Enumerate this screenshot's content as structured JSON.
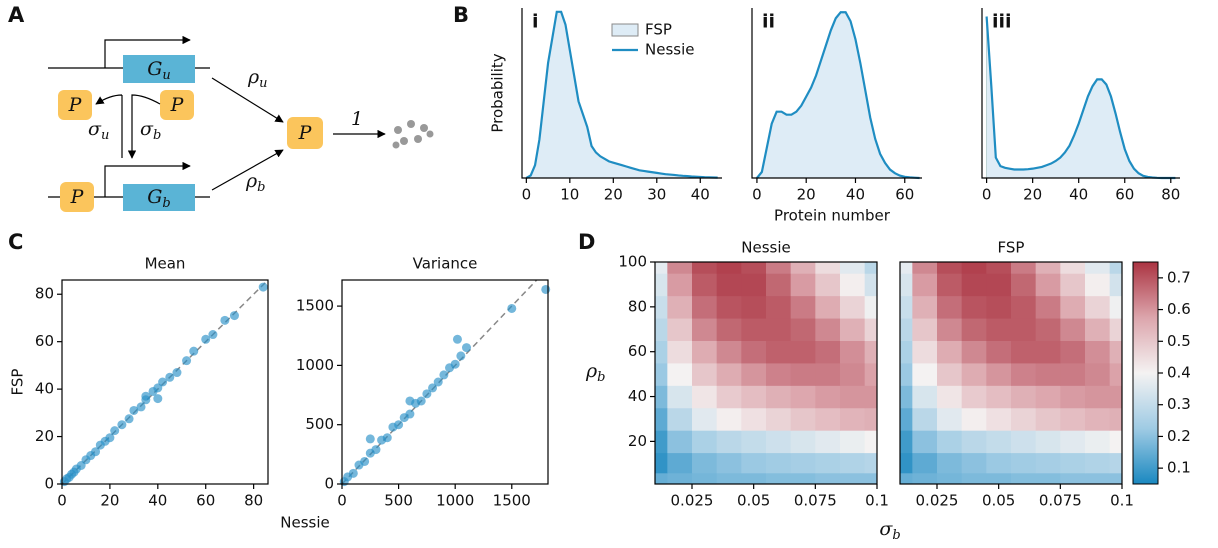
{
  "panel_labels": [
    "A",
    "B",
    "C",
    "D"
  ],
  "diagram": {
    "gene_u": {
      "main": "G",
      "sub": "u"
    },
    "gene_b": {
      "main": "G",
      "sub": "b"
    },
    "protein": "P",
    "rho_u": {
      "main": "ρ",
      "sub": "u"
    },
    "rho_b": {
      "main": "ρ",
      "sub": "b"
    },
    "sigma_u": {
      "main": "σ",
      "sub": "u"
    },
    "sigma_b": {
      "main": "σ",
      "sub": "b"
    },
    "rate": "1"
  },
  "panel_b": {
    "x_label": "Protein number",
    "y_label": "Probability"
  },
  "panel_c": {
    "x_label": "Nessie",
    "y_label": "FSP"
  },
  "panel_d": {
    "x_label": {
      "main": "σ",
      "sub": "b"
    },
    "y_label": {
      "main": "ρ",
      "sub": "b"
    },
    "colorbar": {
      "lim": [
        0.05,
        0.75
      ],
      "ticks": [
        0.1,
        0.2,
        0.3,
        0.4,
        0.5,
        0.6,
        0.7
      ],
      "colors": [
        "#1a88c0",
        "#9fcbe4",
        "#f4f2f2",
        "#dca5ac",
        "#ab3442"
      ]
    }
  },
  "chart_data": [
    {
      "type": "line",
      "title": "i",
      "legend": "upper right",
      "x": [
        0,
        1,
        2,
        3,
        4,
        5,
        6,
        7,
        8,
        9,
        10,
        11,
        12,
        13,
        14,
        15,
        16,
        17,
        18,
        19,
        20,
        21,
        22,
        23,
        24,
        25,
        26,
        27,
        28,
        29,
        30,
        31,
        32,
        33,
        34,
        35,
        36,
        37,
        38,
        39,
        40,
        41,
        42,
        43,
        44
      ],
      "series": [
        {
          "name": "FSP",
          "color": "#deecf6",
          "values": [
            0,
            0.002,
            0.01,
            0.03,
            0.06,
            0.09,
            0.11,
            0.13,
            0.13,
            0.12,
            0.1,
            0.08,
            0.06,
            0.05,
            0.04,
            0.025,
            0.02,
            0.017,
            0.015,
            0.013,
            0.012,
            0.011,
            0.01,
            0.009,
            0.008,
            0.007,
            0.006,
            0.0055,
            0.005,
            0.0045,
            0.004,
            0.0035,
            0.003,
            0.0027,
            0.0024,
            0.002,
            0.0017,
            0.0015,
            0.0012,
            0.001,
            0.0008,
            0.0006,
            0.0005,
            0.0004,
            0.0003
          ]
        },
        {
          "name": "Nessie",
          "color": "#1f8dc2",
          "values": [
            0,
            0.002,
            0.01,
            0.03,
            0.06,
            0.09,
            0.11,
            0.13,
            0.13,
            0.12,
            0.1,
            0.08,
            0.06,
            0.05,
            0.04,
            0.025,
            0.02,
            0.017,
            0.015,
            0.013,
            0.012,
            0.011,
            0.01,
            0.009,
            0.008,
            0.007,
            0.006,
            0.0055,
            0.005,
            0.0045,
            0.004,
            0.0035,
            0.003,
            0.0027,
            0.0024,
            0.002,
            0.0017,
            0.0015,
            0.0012,
            0.001,
            0.0008,
            0.0006,
            0.0005,
            0.0004,
            0.0003
          ]
        }
      ],
      "xlim": [
        -1,
        45
      ],
      "xticks": [
        0,
        10,
        20,
        30,
        40
      ],
      "ylim": [
        0,
        0.133
      ]
    },
    {
      "type": "line",
      "title": "ii",
      "x": [
        0,
        2,
        4,
        6,
        8,
        10,
        12,
        14,
        16,
        18,
        20,
        22,
        24,
        26,
        28,
        30,
        32,
        34,
        36,
        38,
        40,
        42,
        44,
        46,
        48,
        50,
        52,
        54,
        56,
        58,
        60,
        62,
        64,
        66
      ],
      "series": [
        {
          "name": "FSP",
          "color": "#deecf6",
          "values": [
            0,
            0.001,
            0.005,
            0.009,
            0.011,
            0.011,
            0.0105,
            0.0105,
            0.011,
            0.012,
            0.0135,
            0.015,
            0.017,
            0.0195,
            0.022,
            0.0245,
            0.0265,
            0.0275,
            0.0275,
            0.026,
            0.023,
            0.019,
            0.0145,
            0.01,
            0.0065,
            0.004,
            0.0025,
            0.0014,
            0.0008,
            0.0004,
            0.0002,
            0.0001,
            5e-05,
            0
          ]
        },
        {
          "name": "Nessie",
          "color": "#1f8dc2",
          "values": [
            0,
            0.001,
            0.005,
            0.009,
            0.011,
            0.011,
            0.0105,
            0.0105,
            0.011,
            0.012,
            0.0135,
            0.015,
            0.017,
            0.0195,
            0.022,
            0.0245,
            0.0265,
            0.0275,
            0.0275,
            0.026,
            0.023,
            0.019,
            0.0145,
            0.01,
            0.0065,
            0.004,
            0.0025,
            0.0014,
            0.0008,
            0.0004,
            0.0002,
            0.0001,
            5e-05,
            0
          ]
        }
      ],
      "xlim": [
        -2,
        67
      ],
      "xticks": [
        0,
        20,
        40,
        60
      ],
      "ylim": [
        0,
        0.0282
      ]
    },
    {
      "type": "line",
      "title": "iii",
      "x": [
        0,
        2,
        4,
        6,
        8,
        10,
        12,
        14,
        16,
        18,
        20,
        22,
        24,
        26,
        28,
        30,
        32,
        34,
        36,
        38,
        40,
        42,
        44,
        46,
        48,
        50,
        52,
        54,
        56,
        58,
        60,
        62,
        64,
        66,
        68,
        70,
        72,
        74,
        76,
        78,
        80,
        82
      ],
      "series": [
        {
          "name": "FSP",
          "color": "#deecf6",
          "values": [
            0.095,
            0.055,
            0.012,
            0.007,
            0.006,
            0.0055,
            0.005,
            0.005,
            0.005,
            0.0052,
            0.0055,
            0.006,
            0.0065,
            0.0075,
            0.0085,
            0.01,
            0.012,
            0.015,
            0.019,
            0.025,
            0.032,
            0.04,
            0.048,
            0.054,
            0.058,
            0.058,
            0.055,
            0.048,
            0.038,
            0.027,
            0.017,
            0.01,
            0.0055,
            0.0028,
            0.0013,
            0.0006,
            0.0003,
            0.0001,
            0,
            0,
            0,
            0
          ]
        },
        {
          "name": "Nessie",
          "color": "#1f8dc2",
          "values": [
            0.095,
            0.055,
            0.012,
            0.007,
            0.006,
            0.0055,
            0.005,
            0.005,
            0.005,
            0.0052,
            0.0055,
            0.006,
            0.0065,
            0.0075,
            0.0085,
            0.01,
            0.012,
            0.015,
            0.019,
            0.025,
            0.032,
            0.04,
            0.048,
            0.054,
            0.058,
            0.058,
            0.055,
            0.048,
            0.038,
            0.027,
            0.017,
            0.01,
            0.0055,
            0.0028,
            0.0013,
            0.0006,
            0.0003,
            0.0001,
            0,
            0,
            0,
            0
          ]
        }
      ],
      "xlim": [
        -2,
        84
      ],
      "xticks": [
        0,
        20,
        40,
        60,
        80
      ],
      "ylim": [
        0,
        0.1
      ]
    },
    {
      "type": "scatter",
      "title": "Mean",
      "color": "#2a90c8",
      "x": [
        1,
        2,
        3,
        4,
        5,
        6,
        8,
        10,
        12,
        14,
        16,
        18,
        20,
        22,
        25,
        28,
        30,
        33,
        35,
        38,
        40,
        42,
        45,
        48,
        52,
        55,
        60,
        63,
        68,
        72,
        84,
        40,
        35
      ],
      "y": [
        1,
        2.2,
        2.8,
        4.1,
        5,
        6.3,
        7.8,
        10.2,
        12,
        13.6,
        16.4,
        18,
        19.5,
        22.5,
        25,
        27.5,
        31,
        32.5,
        35.5,
        39,
        40.5,
        43,
        45,
        47,
        52,
        56,
        61,
        63,
        69,
        71,
        83,
        36,
        37
      ],
      "xlim": [
        0,
        86
      ],
      "xticks": [
        0,
        20,
        40,
        60,
        80
      ],
      "ylim": [
        0,
        86
      ],
      "yticks": [
        0,
        20,
        40,
        60,
        80
      ]
    },
    {
      "type": "scatter",
      "title": "Variance",
      "color": "#2a90c8",
      "x": [
        20,
        50,
        100,
        150,
        200,
        250,
        300,
        350,
        400,
        450,
        500,
        550,
        600,
        650,
        700,
        750,
        800,
        850,
        900,
        950,
        1000,
        1050,
        1100,
        1500,
        1800,
        1020,
        250,
        600
      ],
      "y": [
        20,
        60,
        90,
        160,
        190,
        260,
        290,
        370,
        390,
        480,
        500,
        560,
        590,
        680,
        700,
        760,
        810,
        860,
        920,
        980,
        1010,
        1080,
        1150,
        1480,
        1640,
        1220,
        380,
        700
      ],
      "xlim": [
        0,
        1820
      ],
      "xticks": [
        0,
        500,
        1000,
        1500
      ],
      "ylim": [
        0,
        1720
      ],
      "yticks": [
        0,
        500,
        1000,
        1500
      ]
    },
    {
      "type": "heatmap",
      "title": "Nessie",
      "x": [
        0.01,
        0.02,
        0.03,
        0.04,
        0.05,
        0.06,
        0.07,
        0.08,
        0.09,
        0.1
      ],
      "y": [
        2,
        10,
        20,
        30,
        40,
        50,
        60,
        70,
        80,
        90,
        100
      ],
      "z": [
        [
          0.15,
          0.16,
          0.17,
          0.18,
          0.18,
          0.19,
          0.19,
          0.2,
          0.2,
          0.2
        ],
        [
          0.08,
          0.14,
          0.18,
          0.2,
          0.22,
          0.23,
          0.24,
          0.25,
          0.26,
          0.27
        ],
        [
          0.1,
          0.2,
          0.25,
          0.28,
          0.3,
          0.32,
          0.34,
          0.36,
          0.38,
          0.4
        ],
        [
          0.14,
          0.28,
          0.36,
          0.41,
          0.44,
          0.47,
          0.5,
          0.52,
          0.54,
          0.55
        ],
        [
          0.18,
          0.34,
          0.43,
          0.49,
          0.52,
          0.55,
          0.57,
          0.59,
          0.6,
          0.6
        ],
        [
          0.22,
          0.4,
          0.5,
          0.56,
          0.6,
          0.63,
          0.64,
          0.64,
          0.62,
          0.58
        ],
        [
          0.25,
          0.45,
          0.56,
          0.62,
          0.66,
          0.68,
          0.68,
          0.66,
          0.61,
          0.55
        ],
        [
          0.28,
          0.5,
          0.62,
          0.67,
          0.69,
          0.69,
          0.67,
          0.62,
          0.55,
          0.47
        ],
        [
          0.31,
          0.55,
          0.66,
          0.7,
          0.71,
          0.69,
          0.64,
          0.56,
          0.47,
          0.39
        ],
        [
          0.34,
          0.59,
          0.69,
          0.72,
          0.72,
          0.67,
          0.59,
          0.5,
          0.41,
          0.33
        ],
        [
          0.37,
          0.62,
          0.71,
          0.73,
          0.71,
          0.64,
          0.55,
          0.45,
          0.36,
          0.28
        ]
      ],
      "xlim": [
        0.01,
        0.1
      ],
      "xticks": [
        0.025,
        0.05,
        0.075,
        0.1
      ],
      "ylim": [
        1,
        100
      ],
      "yticks": [
        20,
        40,
        60,
        80,
        100
      ]
    },
    {
      "type": "heatmap",
      "title": "FSP",
      "x": [
        0.01,
        0.02,
        0.03,
        0.04,
        0.05,
        0.06,
        0.07,
        0.08,
        0.09,
        0.1
      ],
      "y": [
        2,
        10,
        20,
        30,
        40,
        50,
        60,
        70,
        80,
        90,
        100
      ],
      "z": [
        [
          0.15,
          0.16,
          0.17,
          0.18,
          0.18,
          0.19,
          0.19,
          0.2,
          0.2,
          0.2
        ],
        [
          0.08,
          0.14,
          0.18,
          0.2,
          0.22,
          0.23,
          0.24,
          0.25,
          0.26,
          0.27
        ],
        [
          0.1,
          0.2,
          0.25,
          0.28,
          0.3,
          0.32,
          0.34,
          0.36,
          0.38,
          0.4
        ],
        [
          0.14,
          0.28,
          0.36,
          0.41,
          0.44,
          0.47,
          0.5,
          0.52,
          0.54,
          0.55
        ],
        [
          0.18,
          0.34,
          0.43,
          0.49,
          0.52,
          0.55,
          0.57,
          0.59,
          0.6,
          0.6
        ],
        [
          0.22,
          0.4,
          0.5,
          0.56,
          0.6,
          0.63,
          0.64,
          0.64,
          0.62,
          0.58
        ],
        [
          0.25,
          0.45,
          0.56,
          0.62,
          0.66,
          0.68,
          0.68,
          0.66,
          0.61,
          0.55
        ],
        [
          0.28,
          0.5,
          0.62,
          0.67,
          0.69,
          0.69,
          0.67,
          0.62,
          0.55,
          0.47
        ],
        [
          0.31,
          0.55,
          0.66,
          0.7,
          0.71,
          0.69,
          0.64,
          0.56,
          0.47,
          0.39
        ],
        [
          0.34,
          0.59,
          0.69,
          0.72,
          0.72,
          0.67,
          0.59,
          0.5,
          0.41,
          0.33
        ],
        [
          0.37,
          0.62,
          0.71,
          0.73,
          0.71,
          0.64,
          0.55,
          0.45,
          0.36,
          0.28
        ]
      ],
      "xlim": [
        0.01,
        0.1
      ],
      "xticks": [
        0.025,
        0.05,
        0.075,
        0.1
      ],
      "ylim": [
        1,
        100
      ]
    }
  ]
}
